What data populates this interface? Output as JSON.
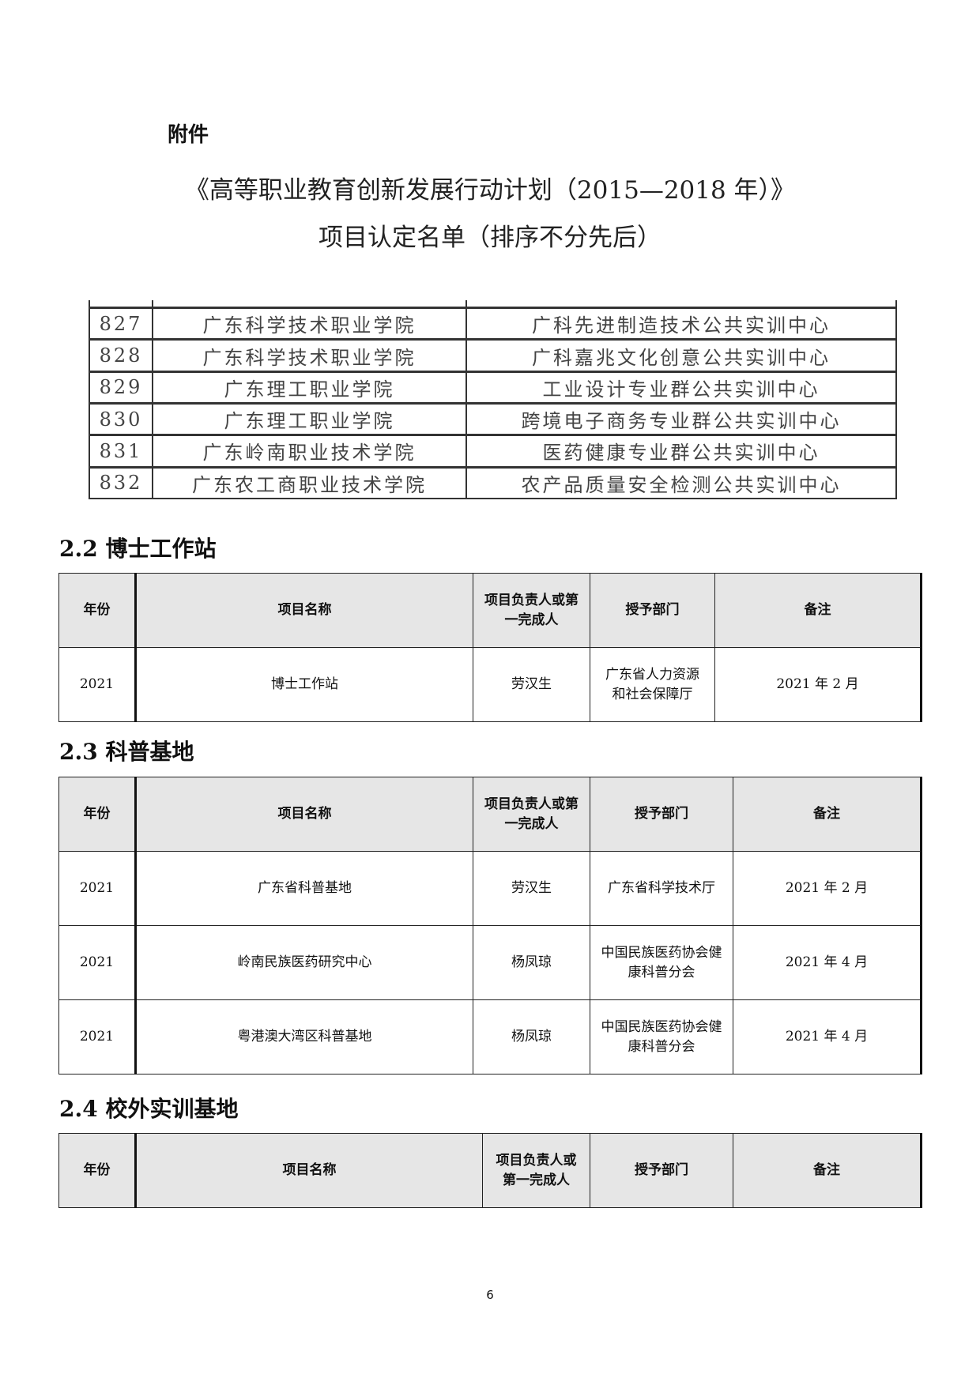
{
  "attachment_label": "附件",
  "title_line1": "《高等职业教育创新发展行动计划（2015—2018 年）》",
  "title_line2": "项目认定名单（排序不分先后）",
  "scan_table": {
    "rows": [
      [
        "827",
        "广东科学技术职业学院",
        "广科先进制造技术公共实训中心"
      ],
      [
        "828",
        "广东科学技术职业学院",
        "广科嘉兆文化创意公共实训中心"
      ],
      [
        "829",
        "广东理工职业学院",
        "工业设计专业群公共实训中心"
      ],
      [
        "830",
        "广东理工职业学院",
        "跨境电子商务专业群公共实训中心"
      ],
      [
        "831",
        "广东岭南职业技术学院",
        "医药健康专业群公共实训中心"
      ],
      [
        "832",
        "广东农工商职业技术学院",
        "农产品质量安全检测公共实训中心"
      ]
    ]
  },
  "headers": [
    "年份",
    "项目名称",
    "项目负责人或第一完成人",
    "授予部门",
    "备注"
  ],
  "sections": [
    {
      "title": "2.2 博士工作站",
      "rows": [
        [
          "2021",
          "博士工作站",
          "劳汉生",
          "广东省人力资源和社会保障厅",
          "2021 年 2 月"
        ]
      ]
    },
    {
      "title": "2.3 科普基地",
      "rows": [
        [
          "2021",
          "广东省科普基地",
          "劳汉生",
          "广东省科学技术厅",
          "2021 年 2 月"
        ],
        [
          "2021",
          "岭南民族医药研究中心",
          "杨凤琼",
          "中国民族医药协会健康科普分会",
          "2021 年 4 月"
        ],
        [
          "2021",
          "粤港澳大湾区科普基地",
          "杨凤琼",
          "中国民族医药协会健康科普分会",
          "2021 年 4 月"
        ]
      ]
    },
    {
      "title": "2.4 校外实训基地",
      "rows": []
    }
  ],
  "page_number": "6"
}
